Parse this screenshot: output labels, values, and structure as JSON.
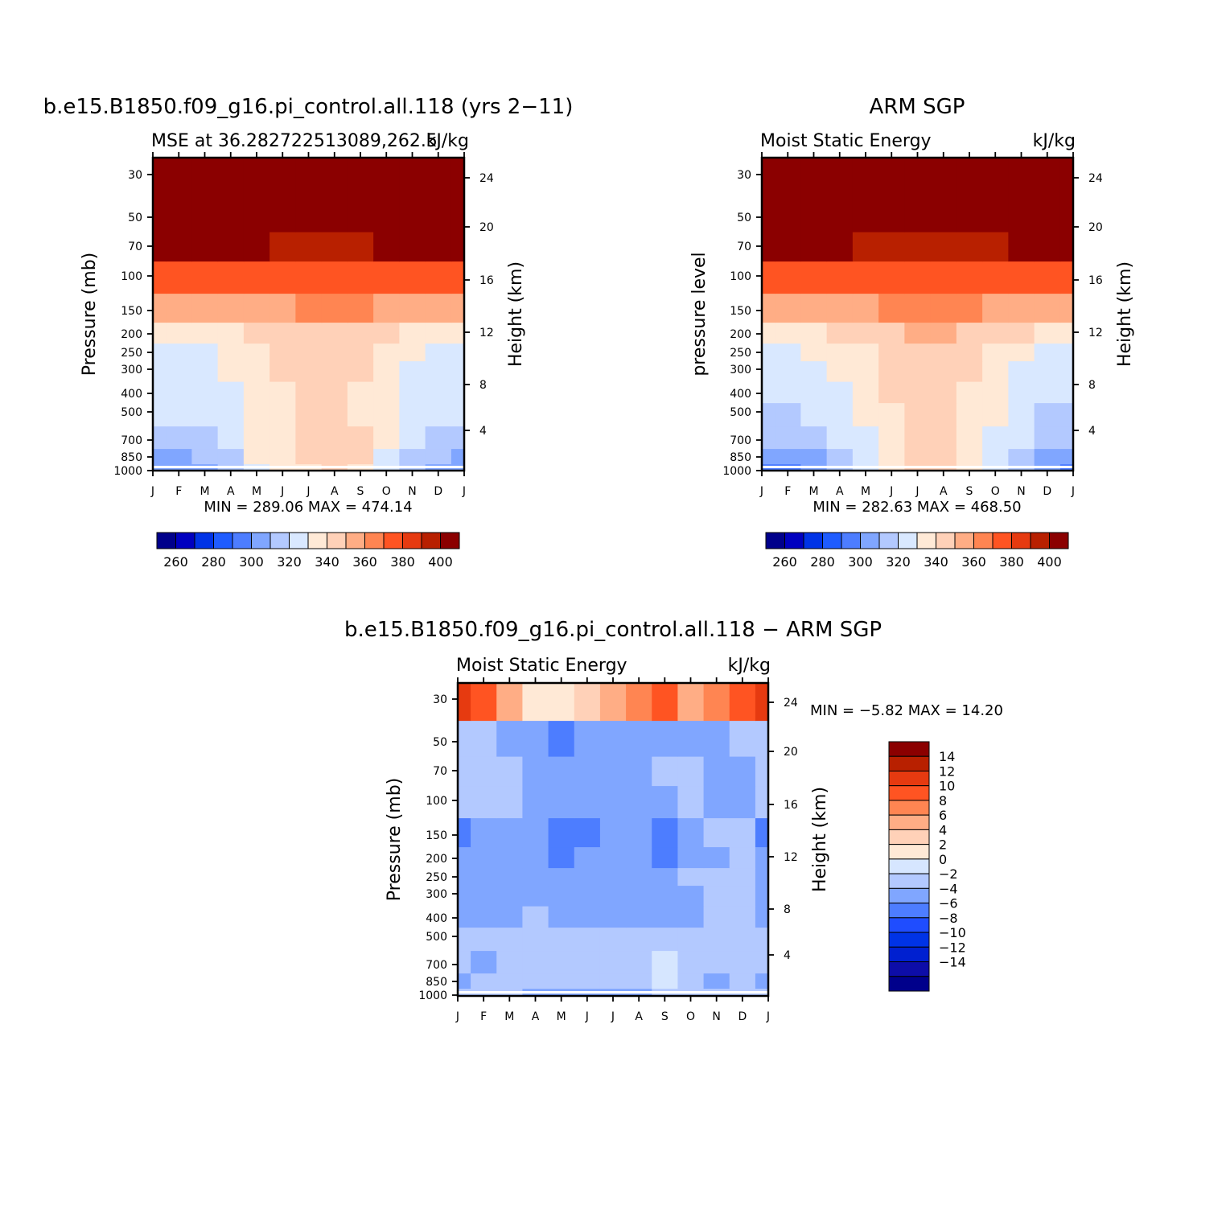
{
  "colors": {
    "scale_a": [
      "#00008b",
      "#0000c0",
      "#0033e6",
      "#1f5cff",
      "#4d7dff",
      "#80a6ff",
      "#b3c9ff",
      "#d9e8ff",
      "#ffe9d6",
      "#ffd1b8",
      "#ffad85",
      "#ff8552",
      "#ff5422",
      "#e63a10",
      "#b82000",
      "#8b0000"
    ],
    "scale_b": [
      "#00008b",
      "#0d0da8",
      "#0020d0",
      "#0033e6",
      "#1f4dff",
      "#4d7dff",
      "#80a6ff",
      "#b3c9ff",
      "#d6e6ff",
      "#ffe9d6",
      "#ffd1b8",
      "#ffad85",
      "#ff8552",
      "#ff5422",
      "#e63a10",
      "#b82000",
      "#8b0000"
    ]
  },
  "chart_data": [
    {
      "type": "heatmap",
      "title": "b.e15.B1850.f09_g16.pi_control.all.118 (yrs 2−11)",
      "subtitle_left": "MSE at 36.282722513089,262.5",
      "subtitle_right": "kJ/kg",
      "ylabel": "Pressure (mb)",
      "y2label": "Height (km)",
      "x": [
        "J",
        "F",
        "M",
        "A",
        "M",
        "J",
        "J",
        "A",
        "S",
        "O",
        "N",
        "D",
        "J"
      ],
      "y": [
        1000,
        850,
        700,
        500,
        400,
        300,
        250,
        200,
        150,
        100,
        70,
        50,
        30
      ],
      "y_ticks": [
        "30",
        "50",
        "70",
        "100",
        "150",
        "200",
        "250",
        "300",
        "400",
        "500",
        "700",
        "850",
        "1000"
      ],
      "y2_ticks": [
        "4",
        "8",
        "12",
        "16",
        "20",
        "24"
      ],
      "minmax": "MIN =  289.06  MAX =  474.14",
      "legend_labels": [
        "260",
        "280",
        "300",
        "320",
        "340",
        "360",
        "380",
        "400"
      ],
      "levels": [
        250,
        260,
        270,
        280,
        290,
        300,
        310,
        320,
        330,
        340,
        350,
        360,
        370,
        380,
        390,
        400
      ],
      "values": [
        [
          292,
          292,
          296,
          306,
          318,
          322,
          326,
          330,
          325,
          316,
          308,
          298,
          292
        ],
        [
          296,
          296,
          300,
          308,
          320,
          328,
          334,
          335,
          330,
          318,
          308,
          300,
          296
        ],
        [
          304,
          304,
          306,
          312,
          320,
          328,
          332,
          333,
          330,
          320,
          312,
          306,
          304
        ],
        [
          310,
          310,
          312,
          316,
          320,
          326,
          331,
          332,
          328,
          320,
          315,
          311,
          310
        ],
        [
          314,
          314,
          315,
          317,
          322,
          328,
          333,
          333,
          329,
          321,
          317,
          315,
          314
        ],
        [
          315,
          315,
          317,
          320,
          326,
          332,
          335,
          334,
          330,
          324,
          318,
          316,
          315
        ],
        [
          317,
          317,
          319,
          322,
          328,
          333,
          336,
          335,
          332,
          326,
          320,
          318,
          317
        ],
        [
          326,
          326,
          327,
          329,
          333,
          336,
          339,
          338,
          336,
          332,
          328,
          327,
          326
        ],
        [
          345,
          345,
          346,
          346,
          348,
          349,
          350,
          350,
          350,
          349,
          347,
          346,
          345
        ],
        [
          368,
          368,
          368,
          368,
          367,
          366,
          365,
          365,
          365,
          366,
          368,
          368,
          368
        ],
        [
          393,
          393,
          392,
          391,
          390,
          388,
          386,
          386,
          387,
          390,
          392,
          393,
          393
        ],
        [
          430,
          430,
          430,
          430,
          430,
          430,
          430,
          430,
          430,
          430,
          430,
          430,
          430
        ],
        [
          470,
          470,
          470,
          470,
          470,
          470,
          470,
          470,
          470,
          470,
          470,
          470,
          470
        ]
      ]
    },
    {
      "type": "heatmap",
      "title": "ARM SGP",
      "subtitle_left": "Moist Static Energy",
      "subtitle_right": "kJ/kg",
      "ylabel": "pressure level",
      "y2label": "Height (km)",
      "x": [
        "J",
        "F",
        "M",
        "A",
        "M",
        "J",
        "J",
        "A",
        "S",
        "O",
        "N",
        "D",
        "J"
      ],
      "y": [
        1000,
        850,
        700,
        500,
        400,
        300,
        250,
        200,
        150,
        100,
        70,
        50,
        30
      ],
      "y_ticks": [
        "30",
        "50",
        "70",
        "100",
        "150",
        "200",
        "250",
        "300",
        "400",
        "500",
        "700",
        "850",
        "1000"
      ],
      "y2_ticks": [
        "4",
        "8",
        "12",
        "16",
        "20",
        "24"
      ],
      "minmax": "MIN =  282.63  MAX =  468.50",
      "legend_labels": [
        "260",
        "280",
        "300",
        "320",
        "340",
        "360",
        "380",
        "400"
      ],
      "levels": [
        250,
        260,
        270,
        280,
        290,
        300,
        310,
        320,
        330,
        340,
        350,
        360,
        370,
        380,
        390,
        400
      ],
      "values": [
        [
          288,
          288,
          292,
          302,
          316,
          324,
          338,
          336,
          324,
          312,
          302,
          290,
          288
        ],
        [
          293,
          293,
          297,
          306,
          318,
          328,
          336,
          334,
          326,
          316,
          304,
          296,
          293
        ],
        [
          302,
          302,
          304,
          310,
          318,
          328,
          333,
          332,
          328,
          318,
          310,
          304,
          302
        ],
        [
          308,
          308,
          310,
          314,
          320,
          327,
          330,
          330,
          326,
          320,
          313,
          309,
          308
        ],
        [
          313,
          313,
          314,
          316,
          322,
          330,
          334,
          333,
          327,
          320,
          316,
          314,
          313
        ],
        [
          316,
          316,
          318,
          321,
          327,
          333,
          336,
          336,
          331,
          324,
          318,
          317,
          316
        ],
        [
          318,
          318,
          320,
          323,
          329,
          334,
          337,
          337,
          333,
          327,
          320,
          319,
          318
        ],
        [
          327,
          327,
          328,
          330,
          333,
          337,
          340,
          340,
          337,
          333,
          330,
          328,
          327
        ],
        [
          346,
          346,
          346,
          347,
          348,
          350,
          351,
          351,
          350,
          348,
          347,
          346,
          346
        ],
        [
          368,
          368,
          368,
          367,
          366,
          365,
          365,
          365,
          365,
          366,
          368,
          368,
          368
        ],
        [
          392,
          392,
          391,
          390,
          388,
          386,
          385,
          385,
          386,
          389,
          391,
          392,
          392
        ],
        [
          430,
          430,
          430,
          430,
          430,
          430,
          430,
          430,
          430,
          430,
          430,
          430,
          430
        ],
        [
          465,
          465,
          465,
          465,
          465,
          465,
          465,
          465,
          465,
          465,
          465,
          465,
          465
        ]
      ]
    },
    {
      "type": "heatmap",
      "title": "b.e15.B1850.f09_g16.pi_control.all.118 − ARM SGP",
      "subtitle_left": "Moist Static Energy",
      "subtitle_right": "kJ/kg",
      "ylabel": "Pressure (mb)",
      "y2label": "Height (km)",
      "x": [
        "J",
        "F",
        "M",
        "A",
        "M",
        "J",
        "J",
        "A",
        "S",
        "O",
        "N",
        "D",
        "J"
      ],
      "y": [
        1000,
        850,
        700,
        500,
        400,
        300,
        250,
        200,
        150,
        100,
        70,
        50,
        30
      ],
      "y_ticks": [
        "30",
        "50",
        "70",
        "100",
        "150",
        "200",
        "250",
        "300",
        "400",
        "500",
        "700",
        "850",
        "1000"
      ],
      "y2_ticks": [
        "4",
        "8",
        "12",
        "16",
        "20",
        "24"
      ],
      "minmax": "MIN =   −5.82  MAX =   14.20",
      "legend_labels": [
        "14",
        "12",
        "10",
        "8",
        "6",
        "4",
        "2",
        "0",
        "−2",
        "−4",
        "−6",
        "−8",
        "−10",
        "−12",
        "−14"
      ],
      "levels": [
        -14,
        -12,
        -10,
        -8,
        -6,
        -4,
        -2,
        0,
        2,
        4,
        6,
        8,
        10,
        12,
        14
      ],
      "values": [
        [
          -1.5,
          -1.5,
          -1.2,
          -2.6,
          -2.5,
          -3.0,
          -3.5,
          -2.8,
          -1.0,
          -1.5,
          -1.5,
          -1.8,
          -1.5
        ],
        [
          -2.2,
          -2.0,
          -1.0,
          -1.2,
          -1.2,
          -1.0,
          -1.3,
          -0.8,
          0.6,
          -1.3,
          -2.2,
          -1.0,
          -2.2
        ],
        [
          -1.0,
          -2.2,
          -1.5,
          -1.2,
          -1.2,
          -1.2,
          -1.3,
          -1.2,
          0.8,
          -1.5,
          -2.0,
          -1.2,
          -1.0
        ],
        [
          -1.8,
          -1.5,
          -1.2,
          -1.2,
          -1.3,
          -1.5,
          -1.4,
          -1.6,
          -1.2,
          -1.5,
          -1.2,
          -1.0,
          -1.8
        ],
        [
          -2.5,
          -2.4,
          -2.6,
          -1.4,
          -2.2,
          -2.5,
          -2.3,
          -2.5,
          -2.4,
          -2.5,
          -1.8,
          -1.5,
          -2.5
        ],
        [
          -2.6,
          -2.4,
          -2.8,
          -2.5,
          -2.3,
          -2.5,
          -2.6,
          -2.8,
          -2.5,
          -2.2,
          -1.6,
          -1.5,
          -2.6
        ],
        [
          -2.3,
          -2.2,
          -2.6,
          -2.3,
          -2.2,
          -2.4,
          -2.5,
          -2.6,
          -2.3,
          -2.0,
          -1.6,
          -1.5,
          -2.3
        ],
        [
          -3.8,
          -3.6,
          -3.2,
          -3.6,
          -4.2,
          -3.8,
          -2.4,
          -2.2,
          -4.5,
          -2.5,
          -2.2,
          -2.0,
          -3.8
        ],
        [
          -4.2,
          -4.0,
          -3.5,
          -4.0,
          -4.4,
          -4.2,
          -2.6,
          -2.4,
          -4.5,
          -2.2,
          -2.0,
          -2.0,
          -4.2
        ],
        [
          -1.5,
          -1.7,
          -1.2,
          -2.5,
          -2.5,
          -2.6,
          -2.5,
          -2.6,
          -2.4,
          -1.5,
          -2.6,
          -2.6,
          -1.5
        ],
        [
          -1.5,
          -1.8,
          -1.5,
          -3.0,
          -2.6,
          -2.4,
          -2.6,
          -2.4,
          -1.8,
          -1.5,
          -2.3,
          -2.4,
          -1.5
        ],
        [
          -1.2,
          -1.0,
          -2.4,
          -3.0,
          -4.4,
          -3.0,
          -2.5,
          -2.3,
          -2.8,
          -2.6,
          -2.4,
          -1.8,
          -1.2
        ],
        [
          12.5,
          10.2,
          6.2,
          3.2,
          2.0,
          4.2,
          6.2,
          8.2,
          10.2,
          6.5,
          8.5,
          11.2,
          12.5
        ]
      ]
    }
  ]
}
